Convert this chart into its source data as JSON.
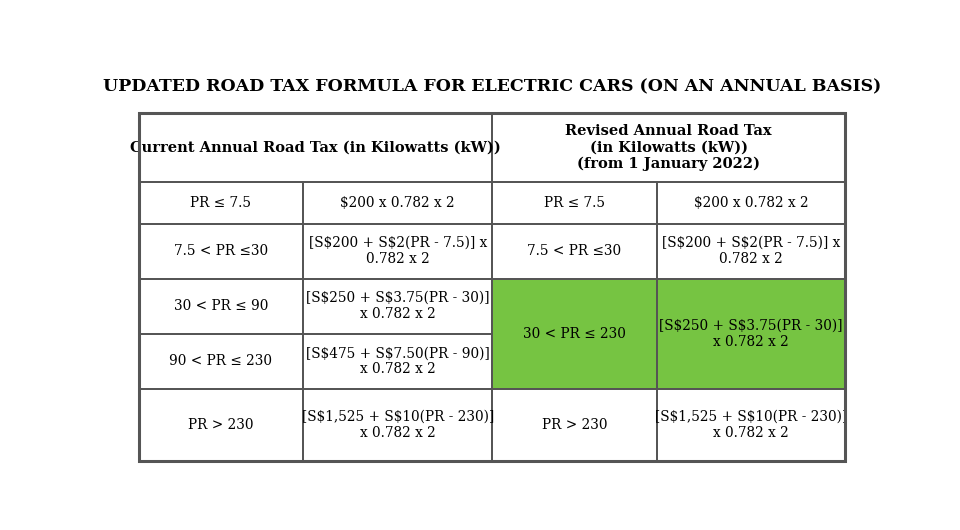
{
  "title": "UPDATED ROAD TAX FORMULA FOR ELECTRIC CARS (ON AN ANNUAL BASIS)",
  "title_fontsize": 12.5,
  "background_color": "#ffffff",
  "border_color": "#555555",
  "green_color": "#76c442",
  "col_header_1": "Current Annual Road Tax (in Kilowatts (kW))",
  "col_header_2": "Revised Annual Road Tax\n(in Kilowatts (kW))\n(from 1 January 2022)",
  "rows": [
    {
      "col1": "PR ≤ 7.5",
      "col2": "\\$200 x 0.782 x 2",
      "col3": "PR ≤ 7.5",
      "col4": "\\$200 x 0.782 x 2"
    },
    {
      "col1": "7.5 < PR ≤30",
      "col2": "[S\\$200 + S\\$2(PR - 7.5)] x\n0.782 x 2",
      "col3": "7.5 < PR ≤30",
      "col4": "[S\\$200 + S\\$2(PR - 7.5)] x\n0.782 x 2"
    },
    {
      "col1": "30 < PR ≤ 90",
      "col2": "[S\\$250 + S\\$3.75(PR - 30)]\nx 0.782 x 2",
      "col3_merged": "30 < PR ≤ 230",
      "col4_merged": "[S\\$250 + S\\$3.75(PR - 30)]\nx 0.782 x 2"
    },
    {
      "col1": "90 < PR ≤ 230",
      "col2": "[S\\$475 + S\\$7.50(PR - 90)]\nx 0.782 x 2"
    },
    {
      "col1": "PR > 230",
      "col2": "[S\\$1,525 + S\\$10(PR - 230)]\nx 0.782 x 2",
      "col3": "PR > 230",
      "col4": "[S\\$1,525 + S\\$10(PR - 230)]\nx 0.782 x 2"
    }
  ]
}
